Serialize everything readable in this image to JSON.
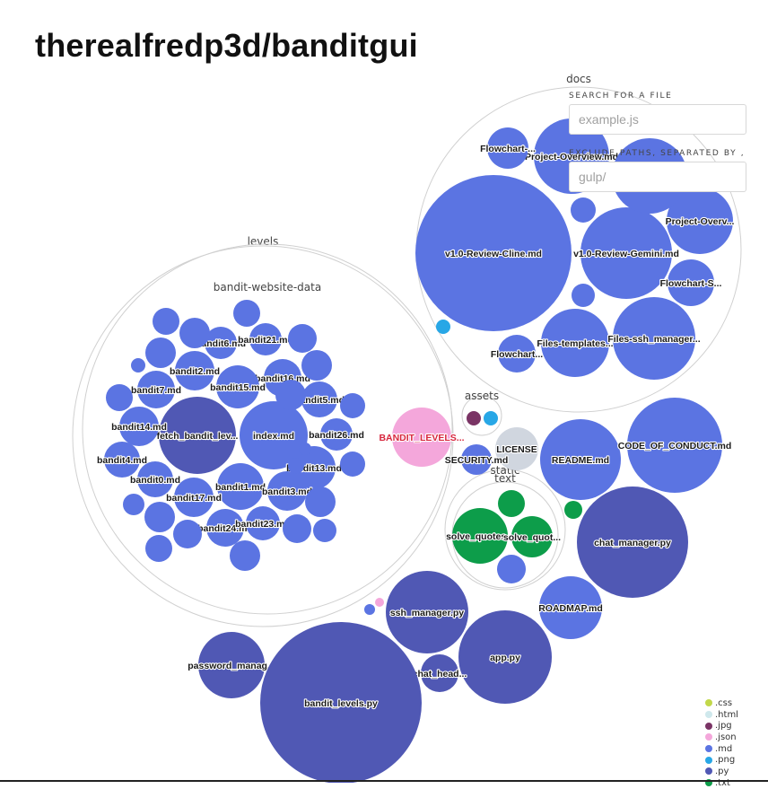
{
  "title": "therealfredp3d/banditgui",
  "search": {
    "label": "SEARCH FOR A FILE",
    "placeholder": "example.js"
  },
  "exclude": {
    "label": "EXCLUDE PATHS, SEPARATED BY ,",
    "placeholder": "gulp/"
  },
  "colors": {
    "md": "#5b74e2",
    "py": "#5058b4",
    "txt": "#0d9d4a",
    "json": "#f4a7db",
    "png": "#28a7e6",
    "jpg": "#7a3465",
    "license": "#d0d6df"
  },
  "legend": [
    {
      "label": ".css",
      "color": "#c2d84a"
    },
    {
      "label": ".html",
      "color": "#cfe8ec"
    },
    {
      "label": ".jpg",
      "color": "#7a3465"
    },
    {
      "label": ".json",
      "color": "#f4a7db"
    },
    {
      "label": ".md",
      "color": "#5b74e2"
    },
    {
      "label": ".png",
      "color": "#28a7e6"
    },
    {
      "label": ".py",
      "color": "#5058b4"
    },
    {
      "label": ".txt",
      "color": "#0d9d4a"
    }
  ],
  "folders": [
    {
      "label": "levels"
    },
    {
      "label": "bandit-website-data"
    },
    {
      "label": "docs"
    },
    {
      "label": "assets"
    },
    {
      "label": "static"
    },
    {
      "label": "text"
    }
  ],
  "files": [
    {
      "label": "v1.0-Review-Cline.md",
      "type": "md"
    },
    {
      "label": "v1.0-Review-Gemini.md",
      "type": "md"
    },
    {
      "label": "Project-Overview.md",
      "type": "md"
    },
    {
      "label": "Project-Overv...",
      "type": "md"
    },
    {
      "label": "Flowchart-S...",
      "type": "md"
    },
    {
      "label": "Flowchart-...",
      "type": "md"
    },
    {
      "label": "Files-templates...",
      "type": "md"
    },
    {
      "label": "Files-ssh_manager...",
      "type": "md"
    },
    {
      "label": "Flowchart...",
      "type": "md"
    },
    {
      "label": "",
      "type": "md"
    },
    {
      "label": "",
      "type": "md"
    },
    {
      "label": "",
      "type": "md"
    },
    {
      "label": "",
      "type": "png"
    },
    {
      "label": "fetch_bandit_lev...",
      "type": "py"
    },
    {
      "label": "index.md",
      "type": "md"
    },
    {
      "label": "bandit6.md",
      "type": "md"
    },
    {
      "label": "bandit21.md",
      "type": "md"
    },
    {
      "label": "bandit2.md",
      "type": "md"
    },
    {
      "label": "bandit16.md",
      "type": "md"
    },
    {
      "label": "bandit15.md",
      "type": "md"
    },
    {
      "label": "bandit7.md",
      "type": "md"
    },
    {
      "label": "bandit5.md",
      "type": "md"
    },
    {
      "label": "bandit14.md",
      "type": "md"
    },
    {
      "label": "bandit26.md",
      "type": "md"
    },
    {
      "label": "bandit4.md",
      "type": "md"
    },
    {
      "label": "bandit13.md",
      "type": "md"
    },
    {
      "label": "bandit0.md",
      "type": "md"
    },
    {
      "label": "bandit1.md",
      "type": "md"
    },
    {
      "label": "bandit17.md",
      "type": "md"
    },
    {
      "label": "bandit3.md",
      "type": "md"
    },
    {
      "label": "bandit24.md",
      "type": "md"
    },
    {
      "label": "bandit23.md",
      "type": "md"
    },
    {
      "label": "",
      "type": "md"
    },
    {
      "label": "",
      "type": "md"
    },
    {
      "label": "",
      "type": "md"
    },
    {
      "label": "",
      "type": "md"
    },
    {
      "label": "",
      "type": "md"
    },
    {
      "label": "",
      "type": "md"
    },
    {
      "label": "",
      "type": "md"
    },
    {
      "label": "",
      "type": "md"
    },
    {
      "label": "",
      "type": "md"
    },
    {
      "label": "",
      "type": "md"
    },
    {
      "label": "",
      "type": "md"
    },
    {
      "label": "",
      "type": "md"
    },
    {
      "label": "",
      "type": "md"
    },
    {
      "label": "",
      "type": "md"
    },
    {
      "label": "",
      "type": "md"
    },
    {
      "label": "",
      "type": "md"
    },
    {
      "label": "",
      "type": "md"
    },
    {
      "label": "",
      "type": "md"
    },
    {
      "label": "",
      "type": "md"
    },
    {
      "label": "",
      "type": "md"
    },
    {
      "label": "",
      "type": "md"
    },
    {
      "label": "BANDIT_LEVELS...",
      "type": "json"
    },
    {
      "label": "",
      "type": "jpg"
    },
    {
      "label": "",
      "type": "png"
    },
    {
      "label": "LICENSE",
      "type": "license"
    },
    {
      "label": "SECURITY.md",
      "type": "md"
    },
    {
      "label": "README.md",
      "type": "md"
    },
    {
      "label": "CODE_OF_CONDUCT.md",
      "type": "md"
    },
    {
      "label": "solve_quotes...",
      "type": "txt"
    },
    {
      "label": "solve_quot...",
      "type": "txt"
    },
    {
      "label": "",
      "type": "txt"
    },
    {
      "label": "",
      "type": "md"
    },
    {
      "label": "",
      "type": "txt"
    },
    {
      "label": "chat_manager.py",
      "type": "py"
    },
    {
      "label": "ROADMAP.md",
      "type": "md"
    },
    {
      "label": "ssh_manager.py",
      "type": "py"
    },
    {
      "label": "app.py",
      "type": "py"
    },
    {
      "label": "chat_head...",
      "type": "py"
    },
    {
      "label": "password_manag...",
      "type": "py"
    },
    {
      "label": "bandit_levels.py",
      "type": "py"
    },
    {
      "label": "",
      "type": "md"
    },
    {
      "label": "",
      "type": "json"
    }
  ]
}
